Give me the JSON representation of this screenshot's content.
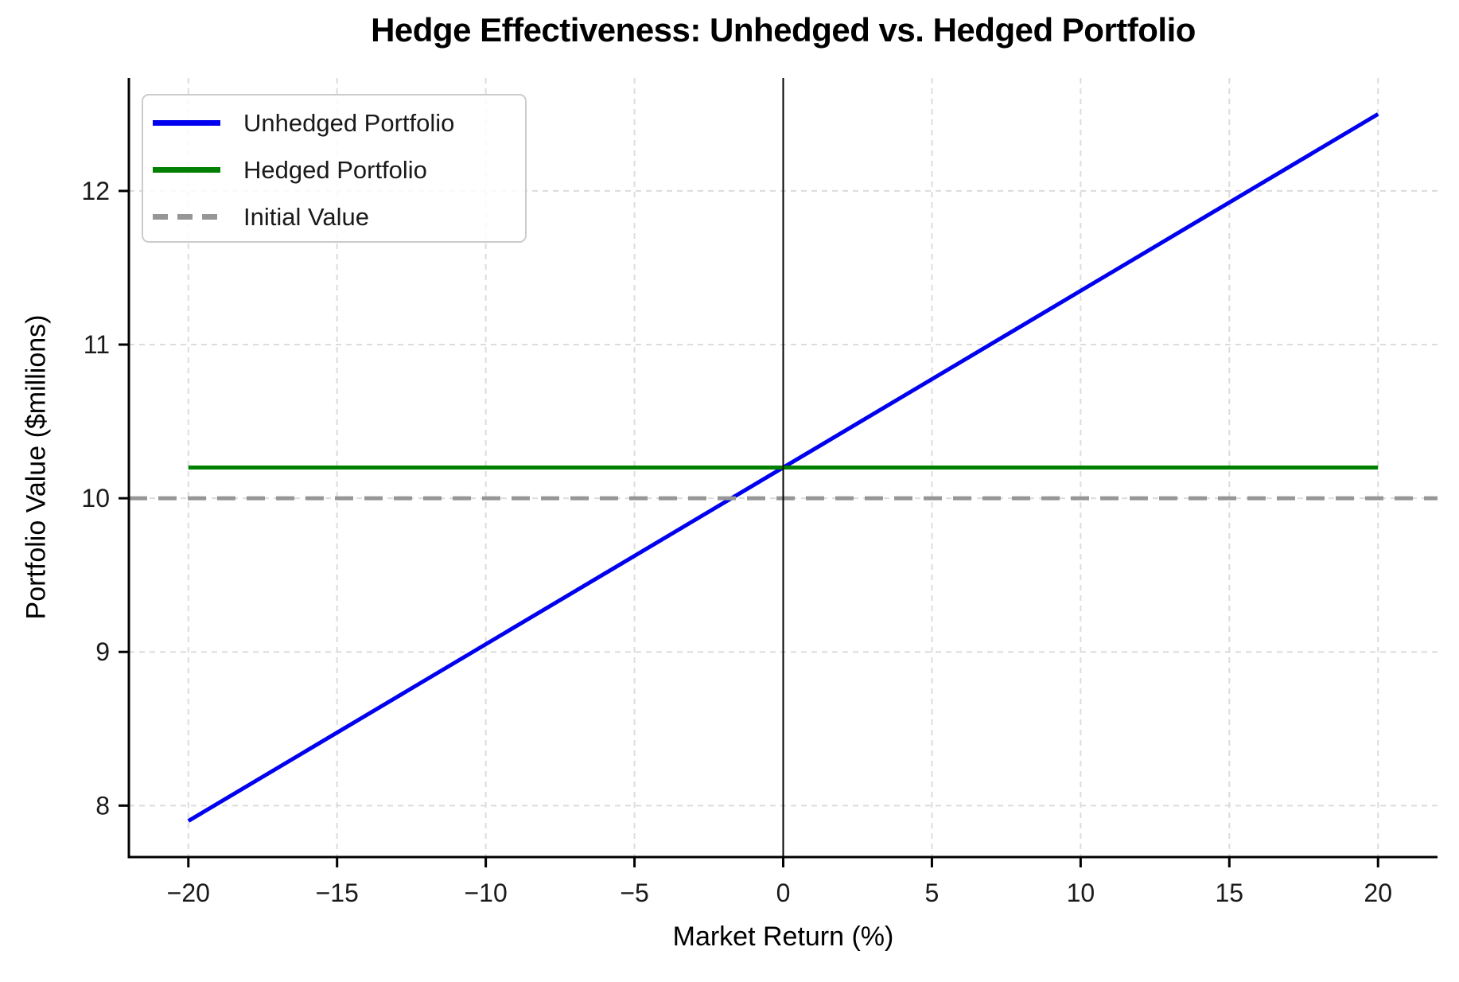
{
  "title": "Hedge Effectiveness: Unhedged vs. Hedged Portfolio",
  "chart_data": {
    "type": "line",
    "title": "Hedge Effectiveness: Unhedged vs. Hedged Portfolio",
    "xlabel": "Market Return (%)",
    "ylabel": "Portfolio Value ($millions)",
    "xlim": [
      -22,
      22
    ],
    "ylim": [
      7.665,
      12.735
    ],
    "xticks": [
      -20,
      -15,
      -10,
      -5,
      0,
      5,
      10,
      15,
      20
    ],
    "xtick_labels": [
      "−20",
      "−15",
      "−10",
      "−5",
      "0",
      "5",
      "10",
      "15",
      "20"
    ],
    "yticks": [
      8,
      9,
      10,
      11,
      12
    ],
    "ytick_labels": [
      "8",
      "9",
      "10",
      "11",
      "12"
    ],
    "grid": true,
    "grid_color": "#dcdcdc",
    "axis_color": "#000000",
    "legend_position": "upper left",
    "series": [
      {
        "name": "Unhedged Portfolio",
        "color": "#0000ee",
        "style": "solid",
        "width": 5,
        "x": [
          -20,
          20
        ],
        "y": [
          7.9,
          12.5
        ]
      },
      {
        "name": "Hedged Portfolio",
        "color": "#008000",
        "style": "solid",
        "width": 5,
        "x": [
          -20,
          20
        ],
        "y": [
          10.2,
          10.2
        ]
      },
      {
        "name": "Initial Value",
        "color": "#969696",
        "style": "dashed",
        "width": 5,
        "x": [
          -22,
          22
        ],
        "y": [
          10.0,
          10.0
        ]
      }
    ],
    "reference_lines": [
      {
        "type": "vline",
        "x": 0,
        "color": "#000000",
        "style": "solid",
        "width": 2
      }
    ]
  }
}
